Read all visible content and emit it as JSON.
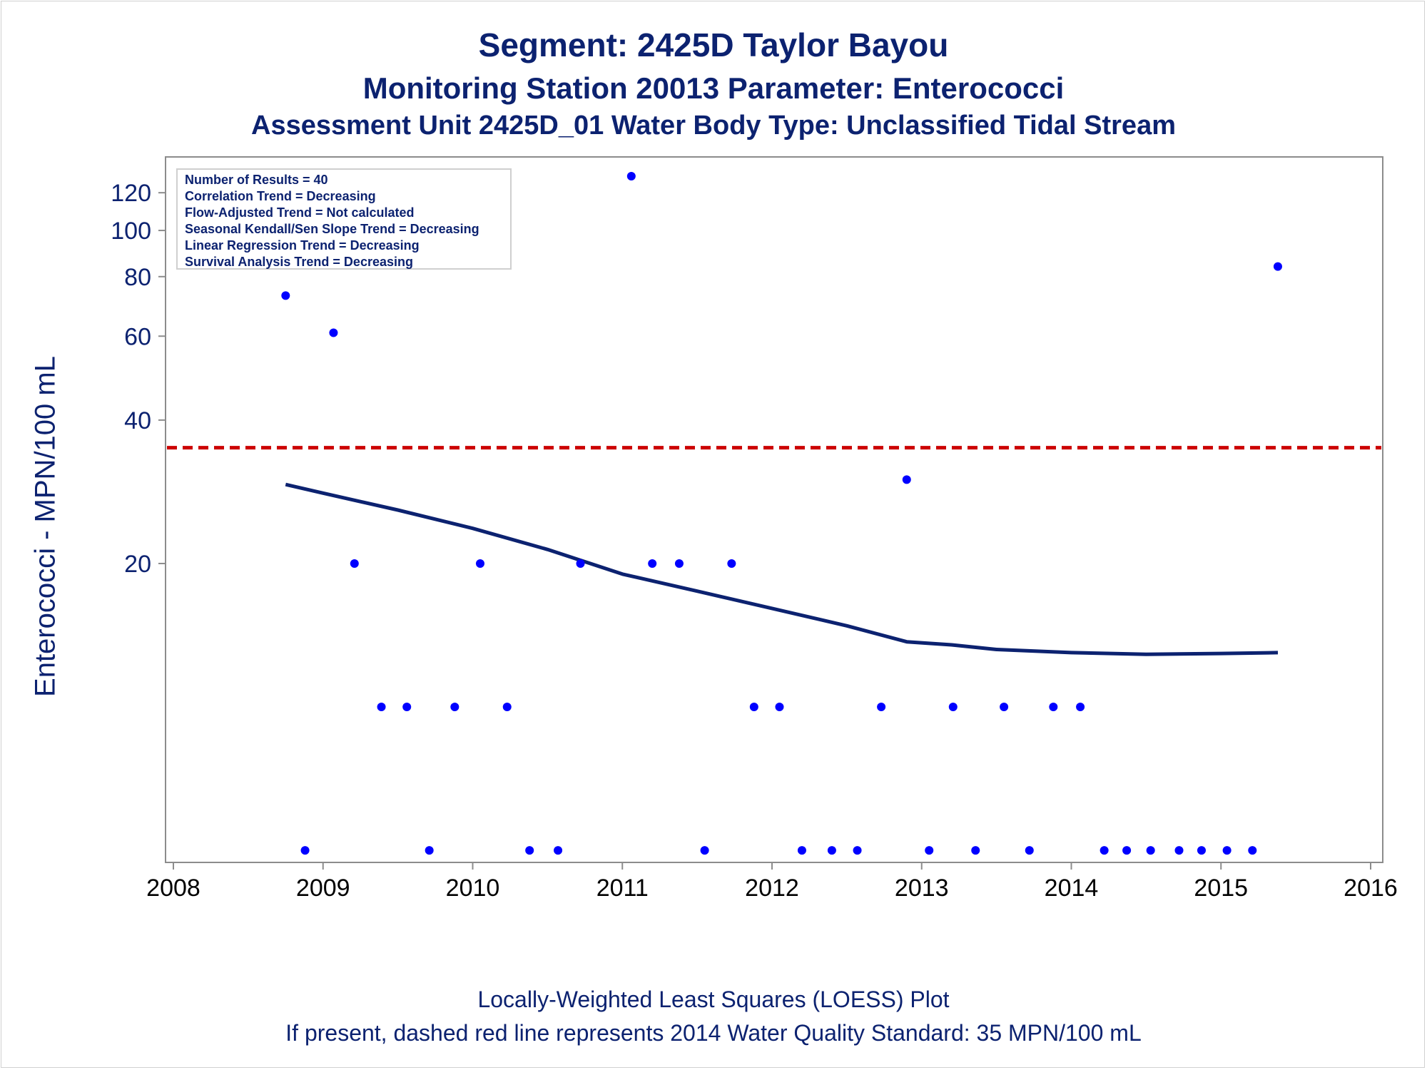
{
  "titles": {
    "line1": "Segment: 2425D  Taylor Bayou",
    "line2": "Monitoring Station 20013 Parameter: Enterococci",
    "line3": "Assessment Unit 2425D_01   Water Body Type: Unclassified Tidal Stream"
  },
  "stats": [
    "Number of Results = 40",
    "Correlation Trend = Decreasing",
    "Flow-Adjusted Trend = Not calculated",
    "Seasonal Kendall/Sen Slope Trend = Decreasing",
    "Linear Regression Trend = Decreasing",
    "Survival Analysis Trend = Decreasing"
  ],
  "footer": {
    "line1": "Locally-Weighted Least Squares (LOESS) Plot",
    "line2": "If present, dashed red line represents 2014 Water Quality Standard: 35 MPN/100 mL"
  },
  "colors": {
    "points": "#0000ff",
    "loess": "#0c2270",
    "standard": "#cc0000",
    "text": "#0c2270",
    "axis": "#8c8c8c"
  },
  "chart_data": {
    "type": "scatter",
    "ylabel": "Enterococci - MPN/100 mL",
    "xlabel": "",
    "yscale": "log",
    "xlim": [
      2008,
      2016
    ],
    "ylim": [
      4.9,
      135
    ],
    "x_ticks": [
      "2008",
      "2009",
      "2010",
      "2011",
      "2012",
      "2013",
      "2014",
      "2015",
      "2016"
    ],
    "y_ticks": [
      "20",
      "40",
      "60",
      "80",
      "100",
      "120"
    ],
    "standard_line": {
      "value": 35,
      "style": "dashed"
    },
    "series": [
      {
        "kind": "points",
        "points": [
          [
            2008.75,
            73
          ],
          [
            2008.88,
            5
          ],
          [
            2009.07,
            61
          ],
          [
            2009.21,
            20
          ],
          [
            2009.39,
            10
          ],
          [
            2009.56,
            10
          ],
          [
            2009.71,
            5
          ],
          [
            2009.88,
            10
          ],
          [
            2010.05,
            20
          ],
          [
            2010.23,
            10
          ],
          [
            2010.38,
            5
          ],
          [
            2010.57,
            5
          ],
          [
            2010.72,
            20
          ],
          [
            2011.06,
            130
          ],
          [
            2011.2,
            20
          ],
          [
            2011.38,
            20
          ],
          [
            2011.55,
            5
          ],
          [
            2011.73,
            20
          ],
          [
            2011.88,
            10
          ],
          [
            2012.05,
            10
          ],
          [
            2012.2,
            5
          ],
          [
            2012.4,
            5
          ],
          [
            2012.57,
            5
          ],
          [
            2012.73,
            10
          ],
          [
            2012.9,
            30
          ],
          [
            2013.05,
            5
          ],
          [
            2013.21,
            10
          ],
          [
            2013.36,
            5
          ],
          [
            2013.55,
            10
          ],
          [
            2013.72,
            5
          ],
          [
            2013.88,
            10
          ],
          [
            2014.06,
            10
          ],
          [
            2014.22,
            5
          ],
          [
            2014.37,
            5
          ],
          [
            2014.53,
            5
          ],
          [
            2014.72,
            5
          ],
          [
            2014.87,
            5
          ],
          [
            2015.04,
            5
          ],
          [
            2015.21,
            5
          ],
          [
            2015.38,
            84
          ]
        ]
      },
      {
        "kind": "loess",
        "points": [
          [
            2008.75,
            29.3
          ],
          [
            2009.0,
            28.1
          ],
          [
            2009.5,
            25.9
          ],
          [
            2010.0,
            23.7
          ],
          [
            2010.5,
            21.4
          ],
          [
            2011.0,
            19.0
          ],
          [
            2011.5,
            17.5
          ],
          [
            2012.0,
            16.1
          ],
          [
            2012.5,
            14.8
          ],
          [
            2012.9,
            13.7
          ],
          [
            2013.2,
            13.5
          ],
          [
            2013.5,
            13.2
          ],
          [
            2014.0,
            13.0
          ],
          [
            2014.5,
            12.9
          ],
          [
            2015.0,
            12.95
          ],
          [
            2015.38,
            13.0
          ]
        ]
      }
    ]
  }
}
